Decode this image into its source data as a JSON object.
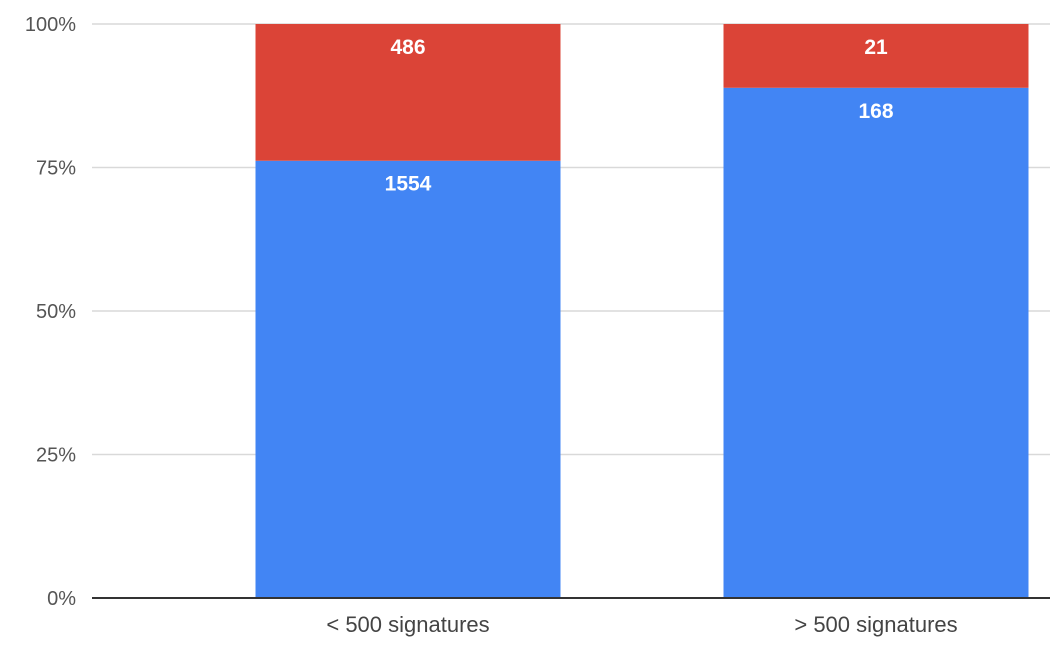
{
  "chart_data": {
    "type": "bar",
    "stacked": true,
    "normalized": true,
    "categories": [
      "< 500 signatures",
      "> 500 signatures"
    ],
    "series": [
      {
        "values": [
          1554,
          168
        ],
        "color": "#4285f4"
      },
      {
        "values": [
          486,
          21
        ],
        "color": "#db4437"
      }
    ],
    "y_ticks": [
      "0%",
      "25%",
      "50%",
      "75%",
      "100%"
    ],
    "y_tick_values": [
      0,
      25,
      50,
      75,
      100
    ],
    "ylim": [
      0,
      100
    ],
    "title": "",
    "xlabel": "",
    "ylabel": "",
    "grid": true,
    "legend": "none"
  }
}
